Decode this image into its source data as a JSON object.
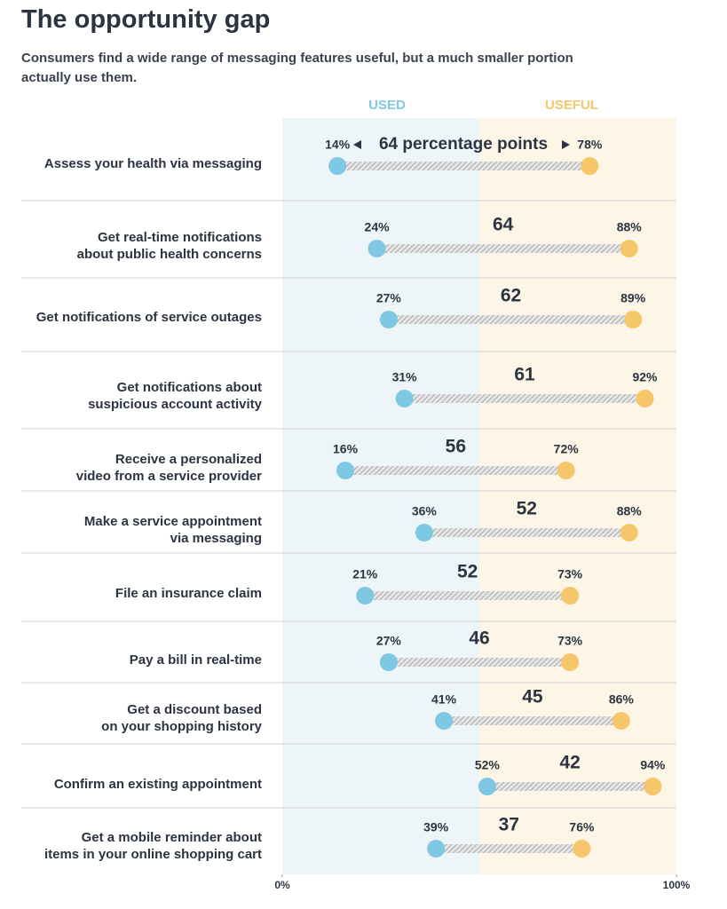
{
  "chart_data": {
    "type": "dumbbell",
    "title": "The opportunity gap",
    "subtitle": "Consumers find a wide range of messaging features useful, but a much smaller portion actually use them.",
    "categories": [
      [
        "Assess your health via messaging"
      ],
      [
        "Get real-time notifications",
        "about public health concerns"
      ],
      [
        "Get notifications of service outages"
      ],
      [
        "Get notifications about",
        "suspicious account activity"
      ],
      [
        "Receive a personalized",
        "video from a service provider"
      ],
      [
        "Make a service appointment",
        "via messaging"
      ],
      [
        "File an insurance claim"
      ],
      [
        "Pay a bill in real-time"
      ],
      [
        "Get a discount based",
        "on your shopping history"
      ],
      [
        "Confirm an existing appointment"
      ],
      [
        "Get a mobile reminder about",
        "items in your online shopping cart"
      ]
    ],
    "series": [
      {
        "name": "USED",
        "color": "#7ec8e3",
        "values": [
          14,
          24,
          27,
          31,
          16,
          36,
          21,
          27,
          41,
          52,
          39
        ],
        "value_labels": [
          "14%",
          "24%",
          "27%",
          "31%",
          "16%",
          "36%",
          "21%",
          "27%",
          "41%",
          "52%",
          "39%"
        ]
      },
      {
        "name": "USEFUL",
        "color": "#f5c66a",
        "values": [
          78,
          88,
          89,
          92,
          72,
          88,
          73,
          73,
          86,
          94,
          76
        ],
        "value_labels": [
          "78%",
          "88%",
          "89%",
          "92%",
          "72%",
          "88%",
          "73%",
          "73%",
          "86%",
          "94%",
          "76%"
        ]
      }
    ],
    "differences": {
      "values": [
        64,
        64,
        62,
        61,
        56,
        52,
        52,
        46,
        45,
        42,
        37
      ],
      "value_labels": [
        "64 percentage points",
        "64",
        "62",
        "61",
        "56",
        "52",
        "52",
        "46",
        "45",
        "42",
        "37"
      ]
    },
    "xlim": [
      0,
      100
    ],
    "xticks": [
      {
        "value": 0,
        "label": "0%"
      },
      {
        "value": 100,
        "label": "100%"
      }
    ]
  }
}
